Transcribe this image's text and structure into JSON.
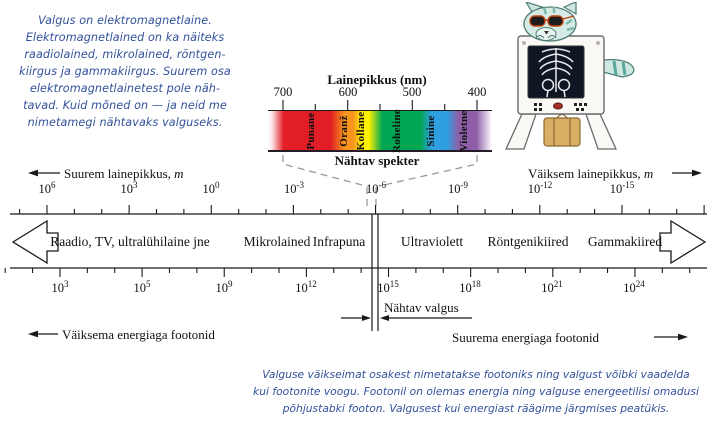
{
  "intro_note": {
    "lines": [
      "Valgus on elektromagnetlaine.",
      "Elektromagnetlained on ka näiteks",
      "raadiolained, mikrolained, röntgen-",
      "kiirgus ja gammakiirgus. Suurem osa",
      "elektromagnetlainetest pole näh-",
      "tavad. Kuid mõned on — ja neid me",
      "nimetamegi nähtavaks valguseks."
    ]
  },
  "spectrum": {
    "title": "Lainepikkus (nm)",
    "tick_labels": [
      "700",
      "600",
      "500",
      "400"
    ],
    "caption": "Nähtav spekter",
    "colors": [
      {
        "label": "Punane",
        "hex": "#e11e25"
      },
      {
        "label": "Oranž",
        "hex": "#f7941d"
      },
      {
        "label": "Kollane",
        "hex": "#fff200"
      },
      {
        "label": "Roheline",
        "hex": "#00a651"
      },
      {
        "label": "Sinine",
        "hex": "#2e9fe0"
      },
      {
        "label": "Violetne",
        "hex": "#8e5fa8"
      }
    ]
  },
  "wavelength_axis": {
    "left_label": "Suurem lainepikkus,",
    "right_label": "Väiksem lainepikkus,",
    "unit": "m",
    "ticks": [
      {
        "base": "10",
        "exp": "6"
      },
      {
        "base": "10",
        "exp": "3"
      },
      {
        "base": "10",
        "exp": "0"
      },
      {
        "base": "10",
        "exp": "-3"
      },
      {
        "base": "10",
        "exp": "-6"
      },
      {
        "base": "10",
        "exp": "-9"
      },
      {
        "base": "10",
        "exp": "-12"
      },
      {
        "base": "10",
        "exp": "-15"
      }
    ]
  },
  "bands": {
    "items": [
      {
        "label": "Raadio, TV, ultralühilaine jne"
      },
      {
        "label": "Mikrolained"
      },
      {
        "label": "Infrapuna"
      },
      {
        "label": "Ultraviolett"
      },
      {
        "label": "Röntgenikiired"
      },
      {
        "label": "Gammakiired"
      }
    ]
  },
  "frequency_axis": {
    "ticks": [
      {
        "base": "10",
        "exp": "3"
      },
      {
        "base": "10",
        "exp": "5"
      },
      {
        "base": "10",
        "exp": "9"
      },
      {
        "base": "10",
        "exp": "12"
      },
      {
        "base": "10",
        "exp": "15"
      },
      {
        "base": "10",
        "exp": "18"
      },
      {
        "base": "10",
        "exp": "21"
      },
      {
        "base": "10",
        "exp": "24"
      }
    ]
  },
  "visible_light_label": "Nähtav valgus",
  "photon_energy": {
    "left_label": "Väiksema energiaga footonid",
    "right_label": "Suurema energiaga footonid"
  },
  "footer_note": {
    "lines": [
      "Valguse väikseimat osakest nimetatakse footoniks ning valgust võibki vaadelda",
      "kui footonite voogu. Footonil on olemas energia ning valguse energeetilisi omadusi",
      "põhjustabki footon. Valgusest kui energiast räägime järgmises peatükis."
    ]
  },
  "icons": {
    "illustration": "xray-cat"
  },
  "palette": {
    "note_text": "#32519b",
    "line": "#1a1a1a",
    "dashed": "#9a9a9a"
  }
}
